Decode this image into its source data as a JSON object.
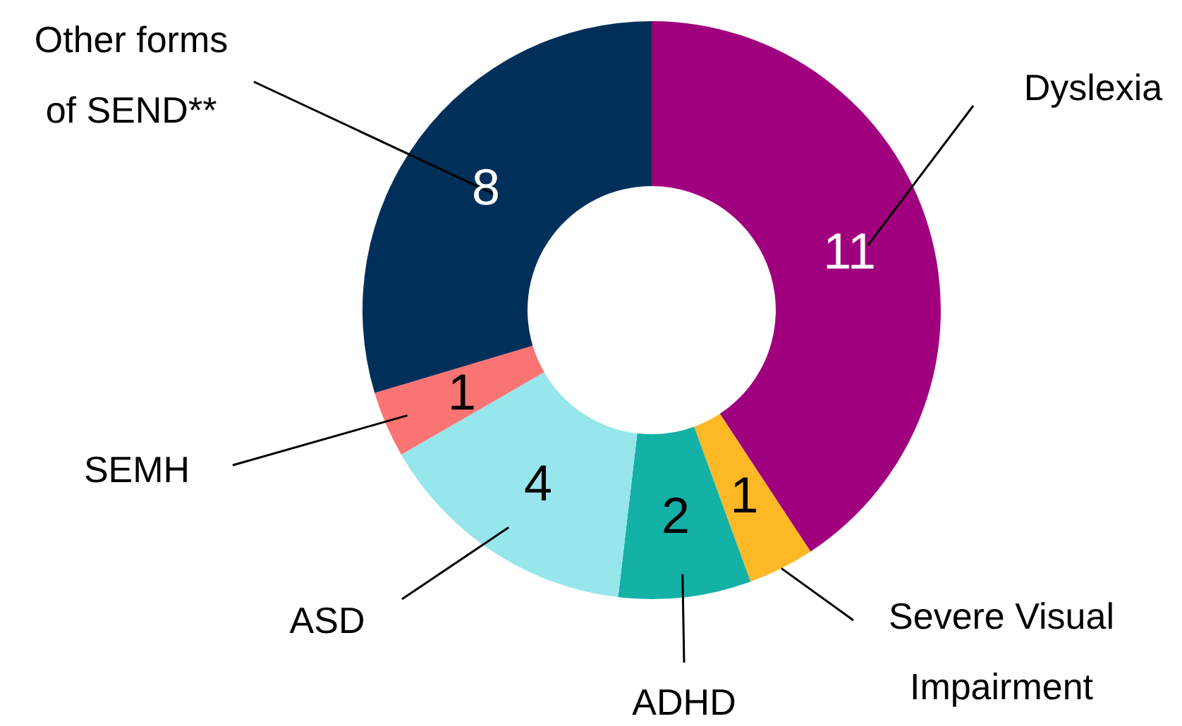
{
  "chart_data": {
    "type": "donut",
    "categories": [
      "Dyslexia",
      "Severe Visual Impairment",
      "ADHD",
      "ASD",
      "SEMH",
      "Other forms of SEND**"
    ],
    "values": [
      11,
      1,
      2,
      4,
      1,
      8
    ],
    "colors": [
      "#a0007e",
      "#fdb825",
      "#13b1a6",
      "#96e6ec",
      "#fb7474",
      "#003059"
    ],
    "data_labels": true
  }
}
